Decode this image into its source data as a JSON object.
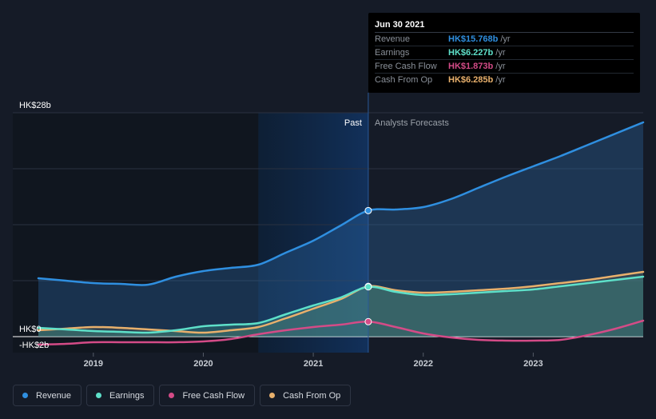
{
  "chart_data": {
    "type": "line",
    "title": "",
    "xlabel": "",
    "ylabel": "",
    "y_unit": "HK$b",
    "x_range": [
      2018.5,
      2024.0
    ],
    "ylim": [
      -2,
      28
    ],
    "y_tick_labels": [
      {
        "value": 28,
        "label": "HK$28b"
      },
      {
        "value": 0,
        "label": "HK$0"
      },
      {
        "value": -2,
        "label": "-HK$2b"
      }
    ],
    "x_ticks": [
      {
        "value": 2019,
        "label": "2019"
      },
      {
        "value": 2020,
        "label": "2020"
      },
      {
        "value": 2021,
        "label": "2021"
      },
      {
        "value": 2022,
        "label": "2022"
      },
      {
        "value": 2023,
        "label": "2023"
      }
    ],
    "divider_x": 2021.5,
    "highlight_start_x": 2020.5,
    "past_label": "Past",
    "forecast_label": "Analysts Forecasts",
    "series": [
      {
        "name": "Revenue",
        "color": "#2f8fe0",
        "filled": true,
        "points": [
          [
            2018.5,
            7.3
          ],
          [
            2018.75,
            7.0
          ],
          [
            2019.0,
            6.7
          ],
          [
            2019.25,
            6.6
          ],
          [
            2019.5,
            6.5
          ],
          [
            2019.75,
            7.5
          ],
          [
            2020.0,
            8.2
          ],
          [
            2020.25,
            8.6
          ],
          [
            2020.5,
            9.0
          ],
          [
            2020.75,
            10.5
          ],
          [
            2021.0,
            12.0
          ],
          [
            2021.25,
            13.9
          ],
          [
            2021.5,
            15.768
          ],
          [
            2021.75,
            15.9
          ],
          [
            2022.0,
            16.2
          ],
          [
            2022.25,
            17.2
          ],
          [
            2022.5,
            18.6
          ],
          [
            2022.75,
            20.0
          ],
          [
            2023.0,
            21.3
          ],
          [
            2023.25,
            22.6
          ],
          [
            2023.5,
            24.0
          ],
          [
            2023.75,
            25.4
          ],
          [
            2024.0,
            26.8
          ]
        ]
      },
      {
        "name": "Earnings",
        "color": "#5ee0c9",
        "filled": true,
        "points": [
          [
            2018.5,
            1.1
          ],
          [
            2018.75,
            0.9
          ],
          [
            2019.0,
            0.7
          ],
          [
            2019.25,
            0.6
          ],
          [
            2019.5,
            0.5
          ],
          [
            2019.75,
            0.8
          ],
          [
            2020.0,
            1.3
          ],
          [
            2020.25,
            1.5
          ],
          [
            2020.5,
            1.7
          ],
          [
            2020.75,
            2.8
          ],
          [
            2021.0,
            3.9
          ],
          [
            2021.25,
            4.9
          ],
          [
            2021.5,
            6.227
          ],
          [
            2021.75,
            5.6
          ],
          [
            2022.0,
            5.2
          ],
          [
            2022.25,
            5.3
          ],
          [
            2022.5,
            5.5
          ],
          [
            2022.75,
            5.7
          ],
          [
            2023.0,
            5.9
          ],
          [
            2023.25,
            6.3
          ],
          [
            2023.5,
            6.7
          ],
          [
            2023.75,
            7.1
          ],
          [
            2024.0,
            7.5
          ]
        ]
      },
      {
        "name": "Free Cash Flow",
        "color": "#d44b87",
        "filled": false,
        "points": [
          [
            2018.5,
            -1.0
          ],
          [
            2018.75,
            -0.9
          ],
          [
            2019.0,
            -0.7
          ],
          [
            2019.25,
            -0.7
          ],
          [
            2019.5,
            -0.7
          ],
          [
            2019.75,
            -0.7
          ],
          [
            2020.0,
            -0.6
          ],
          [
            2020.25,
            -0.3
          ],
          [
            2020.5,
            0.3
          ],
          [
            2020.75,
            0.8
          ],
          [
            2021.0,
            1.2
          ],
          [
            2021.25,
            1.5
          ],
          [
            2021.5,
            1.873
          ],
          [
            2021.75,
            1.2
          ],
          [
            2022.0,
            0.4
          ],
          [
            2022.25,
            -0.1
          ],
          [
            2022.5,
            -0.4
          ],
          [
            2022.75,
            -0.5
          ],
          [
            2023.0,
            -0.5
          ],
          [
            2023.25,
            -0.4
          ],
          [
            2023.5,
            0.2
          ],
          [
            2023.75,
            1.0
          ],
          [
            2024.0,
            2.0
          ]
        ]
      },
      {
        "name": "Cash From Op",
        "color": "#e8b06c",
        "filled": true,
        "points": [
          [
            2018.5,
            0.8
          ],
          [
            2018.75,
            1.0
          ],
          [
            2019.0,
            1.2
          ],
          [
            2019.25,
            1.1
          ],
          [
            2019.5,
            0.9
          ],
          [
            2019.75,
            0.7
          ],
          [
            2020.0,
            0.5
          ],
          [
            2020.25,
            0.8
          ],
          [
            2020.5,
            1.2
          ],
          [
            2020.75,
            2.3
          ],
          [
            2021.0,
            3.5
          ],
          [
            2021.25,
            4.7
          ],
          [
            2021.5,
            6.285
          ],
          [
            2021.75,
            5.8
          ],
          [
            2022.0,
            5.5
          ],
          [
            2022.25,
            5.6
          ],
          [
            2022.5,
            5.8
          ],
          [
            2022.75,
            6.0
          ],
          [
            2023.0,
            6.3
          ],
          [
            2023.25,
            6.7
          ],
          [
            2023.5,
            7.1
          ],
          [
            2023.75,
            7.6
          ],
          [
            2024.0,
            8.1
          ]
        ]
      }
    ]
  },
  "tooltip": {
    "date": "Jun 30 2021",
    "rows": [
      {
        "label": "Revenue",
        "value": "HK$15.768b",
        "unit": "/yr",
        "color": "#2f8fe0"
      },
      {
        "label": "Earnings",
        "value": "HK$6.227b",
        "unit": "/yr",
        "color": "#5ee0c9"
      },
      {
        "label": "Free Cash Flow",
        "value": "HK$1.873b",
        "unit": "/yr",
        "color": "#d44b87"
      },
      {
        "label": "Cash From Op",
        "value": "HK$6.285b",
        "unit": "/yr",
        "color": "#e8b06c"
      }
    ]
  },
  "legend": [
    {
      "label": "Revenue",
      "color": "#2f8fe0"
    },
    {
      "label": "Earnings",
      "color": "#5ee0c9"
    },
    {
      "label": "Free Cash Flow",
      "color": "#d44b87"
    },
    {
      "label": "Cash From Op",
      "color": "#e8b06c"
    }
  ]
}
